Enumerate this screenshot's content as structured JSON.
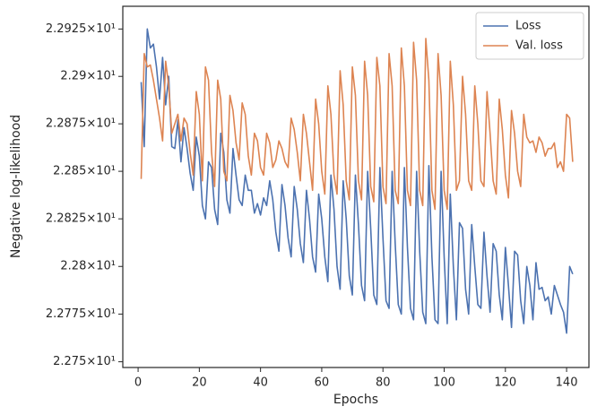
{
  "chart_data": {
    "type": "line",
    "xlabel": "Epochs",
    "ylabel": "Negative log-likelihood",
    "x": [
      1,
      2,
      3,
      4,
      5,
      6,
      7,
      8,
      9,
      10,
      11,
      12,
      13,
      14,
      15,
      16,
      17,
      18,
      19,
      20,
      21,
      22,
      23,
      24,
      25,
      26,
      27,
      28,
      29,
      30,
      31,
      32,
      33,
      34,
      35,
      36,
      37,
      38,
      39,
      40,
      41,
      42,
      43,
      44,
      45,
      46,
      47,
      48,
      49,
      50,
      51,
      52,
      53,
      54,
      55,
      56,
      57,
      58,
      59,
      60,
      61,
      62,
      63,
      64,
      65,
      66,
      67,
      68,
      69,
      70,
      71,
      72,
      73,
      74,
      75,
      76,
      77,
      78,
      79,
      80,
      81,
      82,
      83,
      84,
      85,
      86,
      87,
      88,
      89,
      90,
      91,
      92,
      93,
      94,
      95,
      96,
      97,
      98,
      99,
      100,
      101,
      102,
      103,
      104,
      105,
      106,
      107,
      108,
      109,
      110,
      111,
      112,
      113,
      114,
      115,
      116,
      117,
      118,
      119,
      120,
      121,
      122,
      123,
      124,
      125,
      126,
      127,
      128,
      129,
      130,
      131,
      132,
      133,
      134,
      135,
      136,
      137,
      138,
      139,
      140,
      141,
      142
    ],
    "series": [
      {
        "name": "Loss",
        "color": "#4c72b0",
        "values": [
          22.897,
          22.863,
          22.925,
          22.915,
          22.917,
          22.905,
          22.888,
          22.91,
          22.885,
          22.9,
          22.863,
          22.862,
          22.877,
          22.855,
          22.873,
          22.862,
          22.849,
          22.84,
          22.868,
          22.858,
          22.832,
          22.825,
          22.855,
          22.852,
          22.83,
          22.822,
          22.87,
          22.86,
          22.835,
          22.828,
          22.862,
          22.848,
          22.835,
          22.832,
          22.848,
          22.84,
          22.84,
          22.828,
          22.833,
          22.827,
          22.836,
          22.832,
          22.845,
          22.835,
          22.818,
          22.808,
          22.843,
          22.832,
          22.815,
          22.805,
          22.842,
          22.83,
          22.812,
          22.802,
          22.84,
          22.825,
          22.805,
          22.797,
          22.838,
          22.825,
          22.805,
          22.792,
          22.848,
          22.83,
          22.8,
          22.788,
          22.845,
          22.825,
          22.795,
          22.785,
          22.848,
          22.822,
          22.79,
          22.782,
          22.85,
          22.82,
          22.785,
          22.78,
          22.852,
          22.815,
          22.782,
          22.778,
          22.85,
          22.812,
          22.78,
          22.775,
          22.852,
          22.81,
          22.778,
          22.772,
          22.85,
          22.808,
          22.776,
          22.77,
          22.853,
          22.805,
          22.772,
          22.77,
          22.85,
          22.805,
          22.77,
          22.838,
          22.8,
          22.772,
          22.823,
          22.82,
          22.788,
          22.775,
          22.822,
          22.8,
          22.78,
          22.778,
          22.818,
          22.795,
          22.776,
          22.812,
          22.808,
          22.785,
          22.772,
          22.81,
          22.79,
          22.768,
          22.808,
          22.806,
          22.782,
          22.77,
          22.8,
          22.79,
          22.772,
          22.802,
          22.788,
          22.789,
          22.782,
          22.784,
          22.775,
          22.79,
          22.785,
          22.78,
          22.776,
          22.765,
          22.8,
          22.796
        ]
      },
      {
        "name": "Val. loss",
        "color": "#dd8452",
        "values": [
          22.846,
          22.912,
          22.905,
          22.906,
          22.898,
          22.888,
          22.878,
          22.866,
          22.908,
          22.895,
          22.87,
          22.875,
          22.88,
          22.866,
          22.878,
          22.875,
          22.86,
          22.848,
          22.892,
          22.88,
          22.845,
          22.905,
          22.898,
          22.86,
          22.842,
          22.898,
          22.888,
          22.85,
          22.845,
          22.89,
          22.882,
          22.865,
          22.856,
          22.886,
          22.88,
          22.858,
          22.848,
          22.87,
          22.866,
          22.852,
          22.848,
          22.87,
          22.865,
          22.852,
          22.856,
          22.866,
          22.862,
          22.855,
          22.852,
          22.878,
          22.872,
          22.86,
          22.845,
          22.88,
          22.87,
          22.855,
          22.84,
          22.888,
          22.875,
          22.85,
          22.838,
          22.895,
          22.88,
          22.848,
          22.838,
          22.903,
          22.885,
          22.845,
          22.835,
          22.905,
          22.89,
          22.845,
          22.835,
          22.908,
          22.89,
          22.842,
          22.834,
          22.91,
          22.895,
          22.842,
          22.833,
          22.912,
          22.895,
          22.84,
          22.833,
          22.915,
          22.895,
          22.84,
          22.832,
          22.918,
          22.898,
          22.84,
          22.832,
          22.92,
          22.898,
          22.84,
          22.83,
          22.912,
          22.89,
          22.84,
          22.83,
          22.908,
          22.885,
          22.84,
          22.845,
          22.9,
          22.88,
          22.845,
          22.84,
          22.895,
          22.875,
          22.845,
          22.842,
          22.892,
          22.87,
          22.845,
          22.838,
          22.888,
          22.872,
          22.848,
          22.836,
          22.882,
          22.87,
          22.85,
          22.842,
          22.88,
          22.868,
          22.865,
          22.866,
          22.86,
          22.868,
          22.865,
          22.858,
          22.862,
          22.862,
          22.865,
          22.852,
          22.855,
          22.85,
          22.88,
          22.878,
          22.855
        ]
      }
    ],
    "xlim": [
      -5,
      147.3
    ],
    "xticks": [
      0,
      20,
      40,
      60,
      80,
      100,
      120,
      140
    ],
    "ylim": [
      22.747,
      22.937
    ],
    "ylog": true,
    "yticks": [
      {
        "value": 22.75,
        "label": "2.275×10¹"
      },
      {
        "value": 22.775,
        "label": "2.2775×10¹"
      },
      {
        "value": 22.8,
        "label": "2.28×10¹"
      },
      {
        "value": 22.825,
        "label": "2.2825×10¹"
      },
      {
        "value": 22.85,
        "label": "2.285×10¹"
      },
      {
        "value": 22.875,
        "label": "2.2875×10¹"
      },
      {
        "value": 22.9,
        "label": "2.29×10¹"
      },
      {
        "value": 22.925,
        "label": "2.2925×10¹"
      }
    ],
    "legend": "upper right"
  }
}
